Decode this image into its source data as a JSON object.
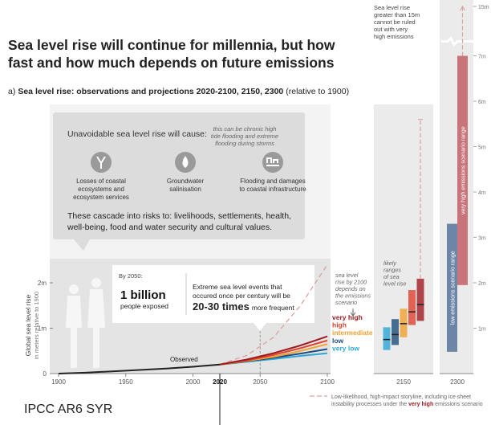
{
  "header": {
    "title": [
      "Sea level rise will continue for millennia, but how",
      "fast and how much depends on future emissions"
    ],
    "panel_label": "a)",
    "subtitle": "Sea level rise: observations and projections 2020-2100, 2150, 2300",
    "subtitle_note": "(relative to 1900)"
  },
  "impacts_box": {
    "heading": "Unavoidable sea level rise will cause:",
    "note": [
      "this can be chronic high",
      "tide flooding and extreme",
      "flooding during storms"
    ],
    "items": [
      [
        "Losses of coastal",
        "ecosystems and",
        "ecosystem services"
      ],
      [
        "Groundwater",
        "salinisation"
      ],
      [
        "Flooding and damages",
        "to coastal infrastructure"
      ]
    ],
    "cascade": [
      "These cascade into risks to: livelihoods, settlements, health,",
      "well-being, food and water security and cultural values."
    ]
  },
  "callout": {
    "heading": "By 2050:",
    "figure1": "1 billion",
    "text1": "people exposed",
    "text2": [
      "Extreme sea level events that",
      "occured once per century will be"
    ],
    "figure2": "20-30 times",
    "text3": "more frequent"
  },
  "source": "IPCC AR6 SYR",
  "chart_data": [
    {
      "type": "line",
      "y_label": [
        "Global sea level rise",
        "in meters relative to 1900"
      ],
      "x": [
        1900,
        1920,
        1940,
        1960,
        1980,
        2000,
        2020,
        2040,
        2060,
        2080,
        2100
      ],
      "xlim": [
        1900,
        2100
      ],
      "xticks": [
        1900,
        1950,
        2000,
        2020,
        2050,
        2100
      ],
      "bold_xtick": 2020,
      "ylim": [
        0,
        2.55
      ],
      "yticks": [
        0,
        {
          "value": 1,
          "label": "1m"
        },
        {
          "value": 2,
          "label": "2m"
        }
      ],
      "observed_label": "Observed",
      "series": [
        {
          "name": "Observed",
          "color": "#222222",
          "values": [
            0,
            0.02,
            0.05,
            0.08,
            0.11,
            0.15,
            0.2,
            null,
            null,
            null,
            null
          ]
        },
        {
          "name": "very high",
          "color": "#9e1b22",
          "values": [
            null,
            null,
            null,
            null,
            null,
            null,
            0.2,
            0.31,
            0.45,
            0.62,
            0.82
          ]
        },
        {
          "name": "high",
          "color": "#e0402e",
          "values": [
            null,
            null,
            null,
            null,
            null,
            null,
            0.2,
            0.29,
            0.41,
            0.56,
            0.73
          ]
        },
        {
          "name": "intermediate",
          "color": "#f0a030",
          "values": [
            null,
            null,
            null,
            null,
            null,
            null,
            0.2,
            0.28,
            0.37,
            0.5,
            0.65
          ]
        },
        {
          "name": "low",
          "color": "#1e4c7c",
          "values": [
            null,
            null,
            null,
            null,
            null,
            null,
            0.2,
            0.27,
            0.35,
            0.44,
            0.54
          ]
        },
        {
          "name": "very low",
          "color": "#2ca6d6",
          "values": [
            null,
            null,
            null,
            null,
            null,
            null,
            0.2,
            0.26,
            0.32,
            0.39,
            0.45
          ]
        }
      ],
      "storyline": {
        "color": "#d9a0a0",
        "values": [
          null,
          null,
          null,
          null,
          null,
          null,
          0.2,
          0.4,
          0.8,
          1.5,
          2.4
        ],
        "legend": [
          "Low-likelihood, high-impact storyline, including ice sheet",
          "instability processes under the ",
          "very high",
          " emissions scenario"
        ]
      },
      "annotation": [
        "sea level",
        "rise by 2100",
        "depends on",
        "the emissions",
        "scenario"
      ]
    },
    {
      "type": "range",
      "categories": [
        "2150"
      ],
      "annotation": [
        "likely",
        "ranges",
        "of sea",
        "level rise"
      ],
      "series": [
        {
          "color": "#2ca6d6",
          "low": [
            0.52
          ],
          "median": [
            0.75
          ],
          "high": [
            1.02
          ]
        },
        {
          "color": "#1e4c7c",
          "low": [
            0.63
          ],
          "median": [
            0.86
          ],
          "high": [
            1.2
          ]
        },
        {
          "color": "#f0a030",
          "low": [
            0.8
          ],
          "median": [
            1.1
          ],
          "high": [
            1.43
          ]
        },
        {
          "color": "#e0402e",
          "low": [
            1.07
          ],
          "median": [
            1.36
          ],
          "high": [
            1.84
          ]
        },
        {
          "color": "#9e1b22",
          "low": [
            1.16
          ],
          "median": [
            1.52
          ],
          "high": [
            2.09
          ],
          "storyline_high": [
            5.6
          ]
        }
      ]
    },
    {
      "type": "range",
      "categories": [
        "2300"
      ],
      "ylim": [
        0,
        15
      ],
      "axis_break": 7,
      "yticks": [
        {
          "value": 1,
          "label": "1m"
        },
        {
          "value": 2,
          "label": "2m"
        },
        {
          "value": 3,
          "label": "3m"
        },
        {
          "value": 4,
          "label": "4m"
        },
        {
          "value": 5,
          "label": "5m"
        },
        {
          "value": 6,
          "label": "6m"
        },
        {
          "value": 7,
          "label": "7m"
        },
        {
          "value": 15,
          "label": "15m"
        }
      ],
      "annotation": [
        "Sea level rise",
        "greater than 15m",
        "cannot be ruled",
        "out with very",
        "high emissions"
      ],
      "series": [
        {
          "name": "low emissions scenario range",
          "color": "#6d86a8",
          "low": [
            0.48
          ],
          "high": [
            3.3
          ]
        },
        {
          "name": "very high emissions scenario range",
          "color": "#c9747a",
          "low": [
            1.95
          ],
          "high": [
            7.0
          ],
          "storyline_high": [
            15
          ]
        }
      ]
    }
  ]
}
